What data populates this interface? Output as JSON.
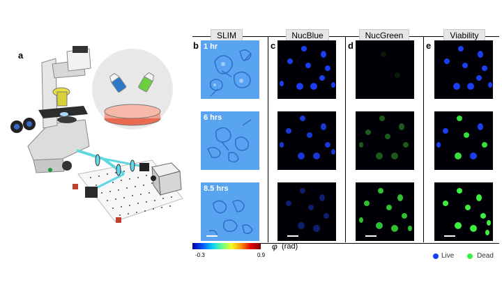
{
  "panel_a": {
    "letter": "a"
  },
  "columns": [
    {
      "letter": "b",
      "header": "SLIM"
    },
    {
      "letter": "c",
      "header": "NucBlue"
    },
    {
      "letter": "d",
      "header": "NucGreen"
    },
    {
      "letter": "e",
      "header": "Viability"
    }
  ],
  "time_labels": [
    "1 hr",
    "6 hrs",
    "8.5 hrs"
  ],
  "colorbar": {
    "symbol": "φ",
    "unit": "(rad)",
    "min": "-0.3",
    "max": "0.9"
  },
  "legend": {
    "live": {
      "label": "Live",
      "color": "#1a3ef0"
    },
    "dead": {
      "label": "Dead",
      "color": "#38f040"
    }
  }
}
